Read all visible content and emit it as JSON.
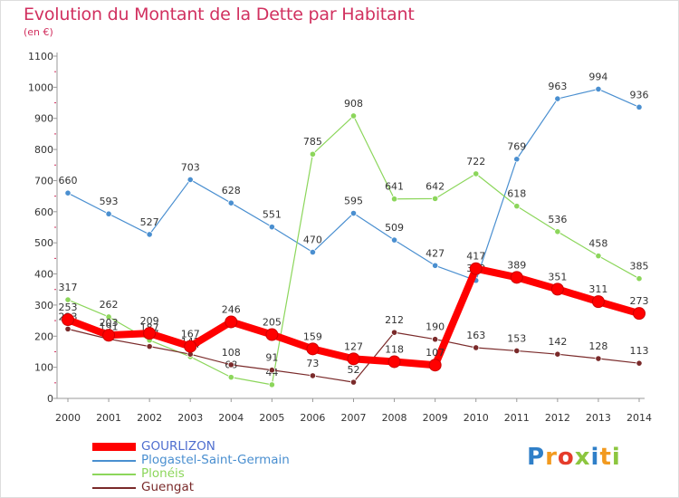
{
  "header": {
    "title": "Evolution du Montant de la Dette par Habitant",
    "unit": "(en €)"
  },
  "logo": {
    "letters": [
      "P",
      "r",
      "o",
      "x",
      "i",
      "t",
      "i"
    ]
  },
  "chart_data": {
    "type": "line",
    "title": "Evolution du Montant de la Dette par Habitant",
    "ylabel": "(en €)",
    "xlabel": "",
    "ylim": [
      0,
      1100
    ],
    "yticks": [
      0,
      100,
      200,
      300,
      400,
      500,
      600,
      700,
      800,
      900,
      1000,
      1100
    ],
    "x": [
      "2000",
      "2001",
      "2002",
      "2003",
      "2004",
      "2005",
      "2006",
      "2007",
      "2008",
      "2009",
      "2010",
      "2011",
      "2012",
      "2013",
      "2014"
    ],
    "grid": false,
    "legend_position": "bottom-left",
    "series": [
      {
        "name": "GOURLIZON",
        "color": "#ff0000",
        "emphasis": true,
        "values": [
          253,
          203,
          209,
          167,
          246,
          205,
          159,
          127,
          118,
          107,
          417,
          389,
          351,
          311,
          273
        ]
      },
      {
        "name": "Plogastel-Saint-Germain",
        "color": "#4a8fd0",
        "emphasis": false,
        "values": [
          660,
          593,
          527,
          703,
          628,
          551,
          470,
          595,
          509,
          427,
          379,
          769,
          963,
          994,
          936
        ]
      },
      {
        "name": "Plonéis",
        "color": "#8cd65b",
        "emphasis": false,
        "values": [
          317,
          262,
          187,
          134,
          68,
          44,
          785,
          908,
          641,
          642,
          722,
          618,
          536,
          458,
          385
        ]
      },
      {
        "name": "Guengat",
        "color": "#7a2a2a",
        "emphasis": false,
        "values": [
          223,
          191,
          167,
          142,
          108,
          91,
          73,
          52,
          212,
          190,
          163,
          153,
          142,
          128,
          113
        ]
      }
    ]
  }
}
